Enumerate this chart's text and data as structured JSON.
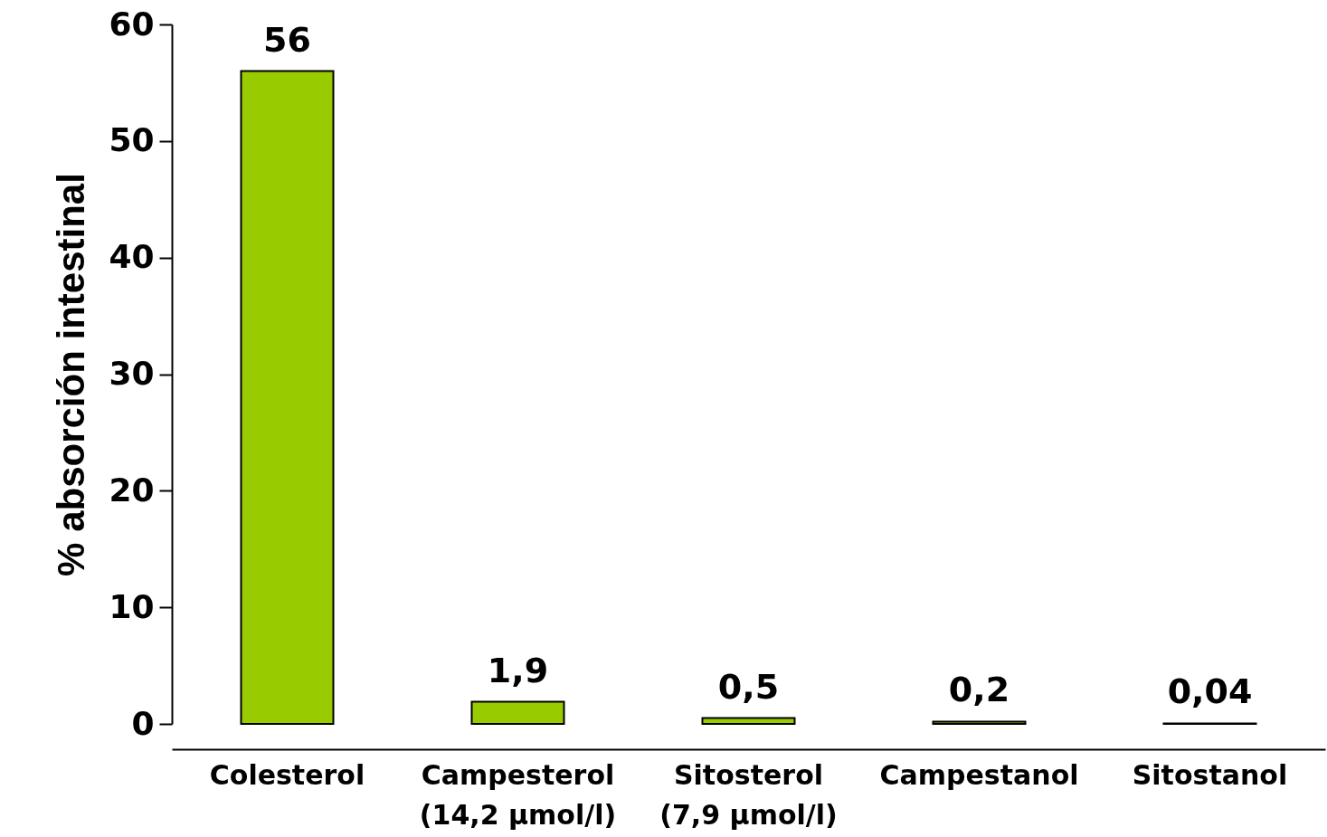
{
  "chart_data": {
    "type": "bar",
    "ylabel": "% absorción intestinal",
    "categories": [
      "Colesterol",
      "Campesterol\n(14,2 µmol/l)",
      "Sitosterol\n(7,9 µmol/l)",
      "Campestanol",
      "Sitostanol"
    ],
    "values": [
      56,
      1.9,
      0.5,
      0.2,
      0.04
    ],
    "value_labels": [
      "56",
      "1,9",
      "0,5",
      "0,2",
      "0,04"
    ],
    "color": "#99cc00",
    "ylim": [
      0,
      60
    ],
    "yticks": [
      0,
      10,
      20,
      30,
      40,
      50,
      60
    ]
  }
}
